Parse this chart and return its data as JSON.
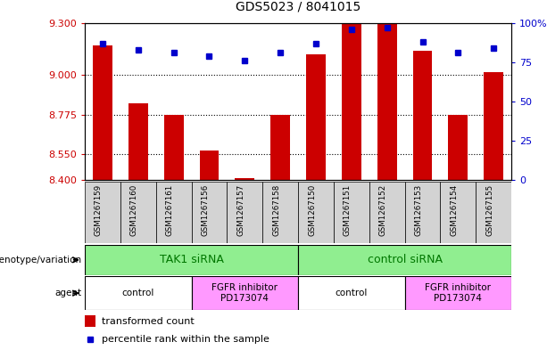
{
  "title": "GDS5023 / 8041015",
  "samples": [
    "GSM1267159",
    "GSM1267160",
    "GSM1267161",
    "GSM1267156",
    "GSM1267157",
    "GSM1267158",
    "GSM1267150",
    "GSM1267151",
    "GSM1267152",
    "GSM1267153",
    "GSM1267154",
    "GSM1267155"
  ],
  "transformed_count": [
    9.17,
    8.84,
    8.775,
    8.57,
    8.41,
    8.775,
    9.12,
    9.3,
    9.3,
    9.14,
    8.775,
    9.02
  ],
  "percentile_rank": [
    87,
    83,
    81,
    79,
    76,
    81,
    87,
    96,
    97,
    88,
    81,
    84
  ],
  "ylim_left": [
    8.4,
    9.3
  ],
  "ylim_right": [
    0,
    100
  ],
  "yticks_left": [
    8.4,
    8.55,
    8.775,
    9.0,
    9.3
  ],
  "yticks_right": [
    0,
    25,
    50,
    75,
    100
  ],
  "ytick_labels_right": [
    "0",
    "25",
    "50",
    "75",
    "100%"
  ],
  "hlines": [
    9.0,
    8.775,
    8.55
  ],
  "bar_color": "#CC0000",
  "dot_color": "#0000CC",
  "bar_base": 8.4,
  "genotype_groups": [
    {
      "label": "TAK1 siRNA",
      "start": 0,
      "end": 6
    },
    {
      "label": "control siRNA",
      "start": 6,
      "end": 12
    }
  ],
  "agent_groups": [
    {
      "label": "control",
      "start": 0,
      "end": 3
    },
    {
      "label": "FGFR inhibitor\nPD173074",
      "start": 3,
      "end": 6
    },
    {
      "label": "control",
      "start": 6,
      "end": 9
    },
    {
      "label": "FGFR inhibitor\nPD173074",
      "start": 9,
      "end": 12
    }
  ],
  "genotype_color": "#90EE90",
  "agent_color_control": "#FFFFFF",
  "agent_color_fgfr": "#FF99FF",
  "legend_bar_label": "transformed count",
  "legend_dot_label": "percentile rank within the sample",
  "genotype_label_x": "genotype/variation",
  "agent_label_x": "agent"
}
